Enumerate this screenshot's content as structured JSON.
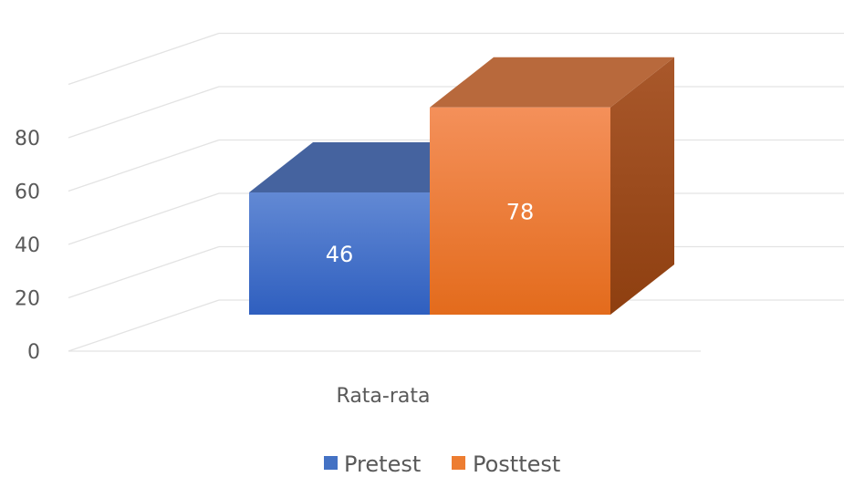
{
  "chart_data": {
    "type": "bar",
    "categories": [
      "Rata-rata"
    ],
    "series": [
      {
        "name": "Pretest",
        "values": [
          46
        ],
        "color": "#4472C4"
      },
      {
        "name": "Posttest",
        "values": [
          78
        ],
        "color": "#ED7D31"
      }
    ],
    "data_labels": [
      "46",
      "78"
    ],
    "yticks": [
      "0",
      "20",
      "40",
      "60",
      "80"
    ],
    "ylim": [
      0,
      100
    ],
    "grid": true,
    "three_d": true,
    "legend_position": "bottom"
  }
}
